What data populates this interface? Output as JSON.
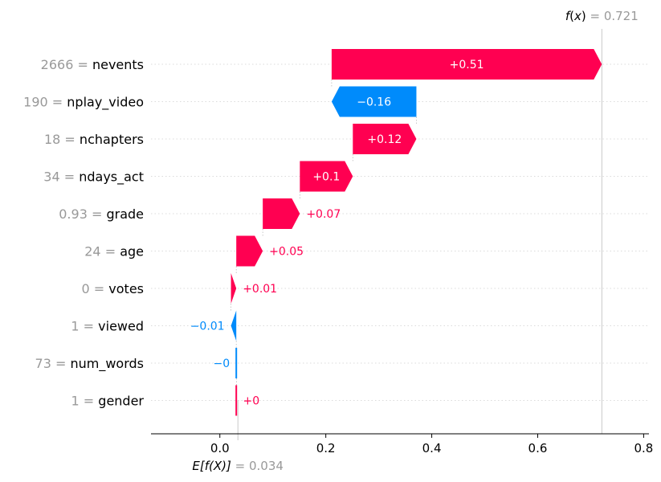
{
  "chart_data": {
    "type": "waterfall",
    "base_value": 0.034,
    "output_value": 0.721,
    "features": [
      {
        "value": "2666",
        "name": "nevents",
        "contribution": 0.51,
        "label": "+0.51"
      },
      {
        "value": "190",
        "name": "nplay_video",
        "contribution": -0.16,
        "label": "−0.16"
      },
      {
        "value": "18",
        "name": "nchapters",
        "contribution": 0.12,
        "label": "+0.12"
      },
      {
        "value": "34",
        "name": "ndays_act",
        "contribution": 0.1,
        "label": "+0.1"
      },
      {
        "value": "0.93",
        "name": "grade",
        "contribution": 0.07,
        "label": "+0.07"
      },
      {
        "value": "24",
        "name": "age",
        "contribution": 0.05,
        "label": "+0.05"
      },
      {
        "value": "0",
        "name": "votes",
        "contribution": 0.01,
        "label": "+0.01"
      },
      {
        "value": "1",
        "name": "viewed",
        "contribution": -0.01,
        "label": "−0.01"
      },
      {
        "value": "73",
        "name": "num_words",
        "contribution": -0.0005,
        "label": "−0"
      },
      {
        "value": "1",
        "name": "gender",
        "contribution": 0.0005,
        "label": "+0"
      }
    ],
    "xlim": [
      -0.13,
      0.81
    ],
    "xticks": [
      0.0,
      0.2,
      0.4,
      0.6,
      0.8
    ],
    "xtick_labels": [
      "0.0",
      "0.2",
      "0.4",
      "0.6",
      "0.8"
    ],
    "fx_label": {
      "prefix": "f",
      "arg": "x",
      "eq": " = ",
      "value": "0.721"
    },
    "efx_label": {
      "prefix": "E[f(X)]",
      "eq": " = ",
      "value": "0.034"
    },
    "colors": {
      "positive": "#ff0051",
      "negative": "#008bfb",
      "grid": "#cccccc",
      "value_text": "#999999"
    },
    "grid": true
  }
}
